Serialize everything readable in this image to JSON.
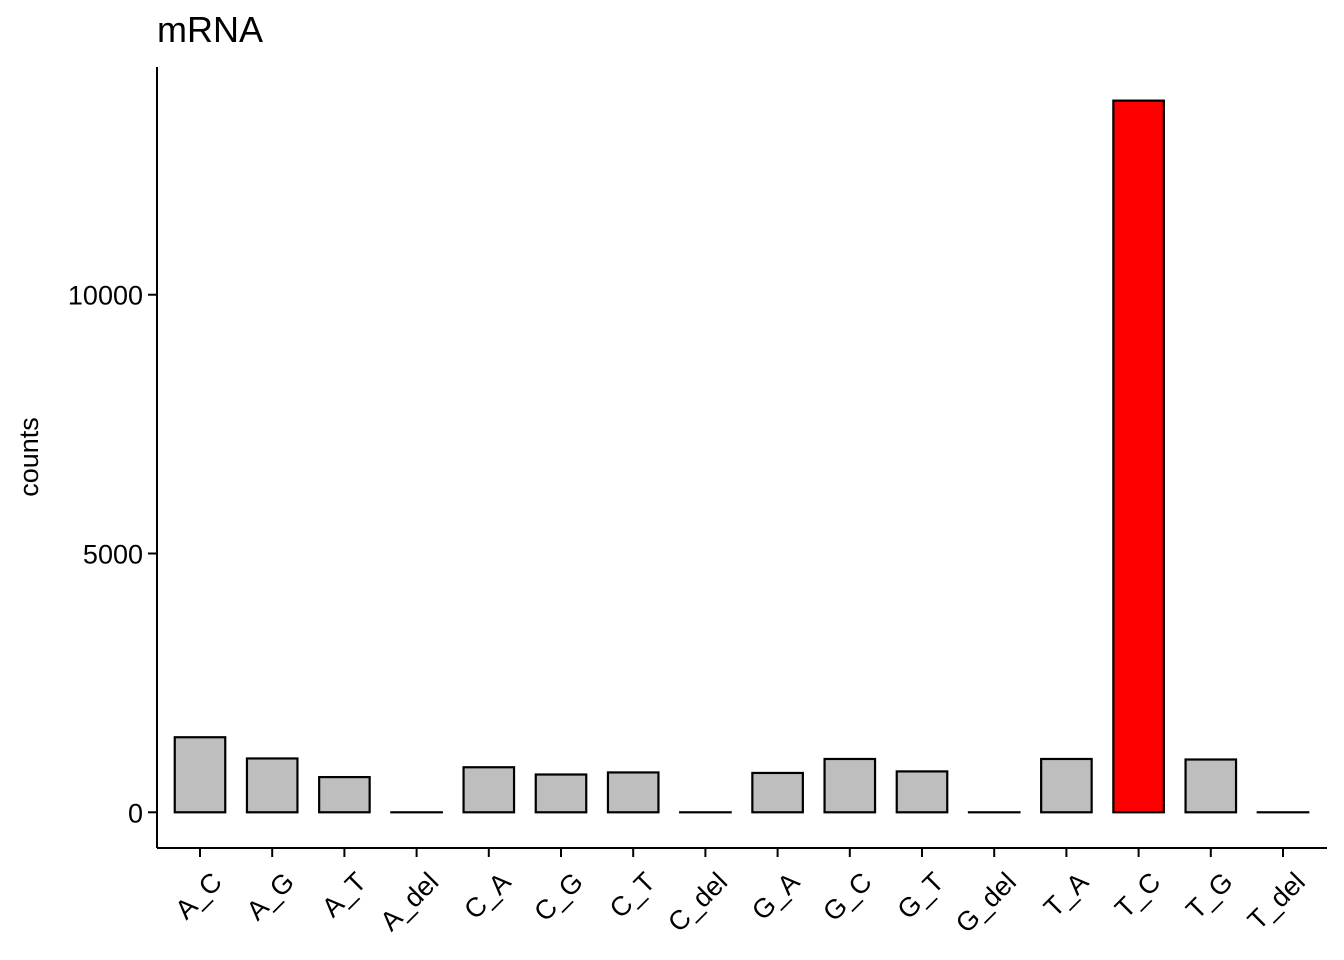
{
  "chart_data": {
    "type": "bar",
    "title": "mRNA",
    "xlabel": "",
    "ylabel": "counts",
    "categories": [
      "A_C",
      "A_G",
      "A_T",
      "A_del",
      "C_A",
      "C_G",
      "C_T",
      "C_del",
      "G_A",
      "G_C",
      "G_T",
      "G_del",
      "T_A",
      "T_C",
      "T_G",
      "T_del"
    ],
    "values": [
      1450,
      1040,
      680,
      0,
      870,
      730,
      770,
      0,
      760,
      1030,
      790,
      0,
      1030,
      13750,
      1020,
      0
    ],
    "yticks": [
      0,
      5000,
      10000
    ],
    "ytick_labels": [
      "0",
      "5000",
      "10000"
    ],
    "ylim": [
      -690,
      14400
    ],
    "highlight_category": "T_C",
    "colors": {
      "bar_default": "#bebebe",
      "bar_highlight": "#ff0000",
      "bar_outline": "#000000",
      "axis": "#000000"
    },
    "grid": false,
    "legend": "none"
  }
}
